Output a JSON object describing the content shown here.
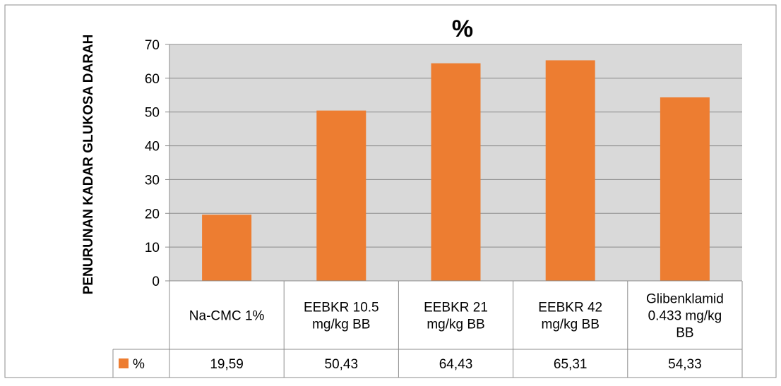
{
  "chart_data": {
    "type": "bar",
    "title": "%",
    "ylabel": "PENURUNAN KADAR GLUKOSA DARAH",
    "xlabel": "",
    "ylim": [
      0,
      70
    ],
    "yticks": [
      0,
      10,
      20,
      30,
      40,
      50,
      60,
      70
    ],
    "grid": true,
    "legend_position": "data-table",
    "categories": [
      [
        "Na-CMC 1%"
      ],
      [
        "EEBKR 10.5",
        "mg/kg BB"
      ],
      [
        "EEBKR 21",
        "mg/kg BB"
      ],
      [
        "EEBKR 42",
        "mg/kg BB"
      ],
      [
        "Glibenklamid",
        "0.433 mg/kg",
        "BB"
      ]
    ],
    "series": [
      {
        "name": "%",
        "values": [
          19.59,
          50.43,
          64.43,
          65.31,
          54.33
        ],
        "value_labels": [
          "19,59",
          "50,43",
          "64,43",
          "65,31",
          "54,33"
        ]
      }
    ],
    "colors": {
      "bar": "#ED7D31",
      "plot_background": "#D9D9D9",
      "gridline": "#8C8C8C",
      "border": "#8C8C8C",
      "text": "#000000"
    }
  }
}
